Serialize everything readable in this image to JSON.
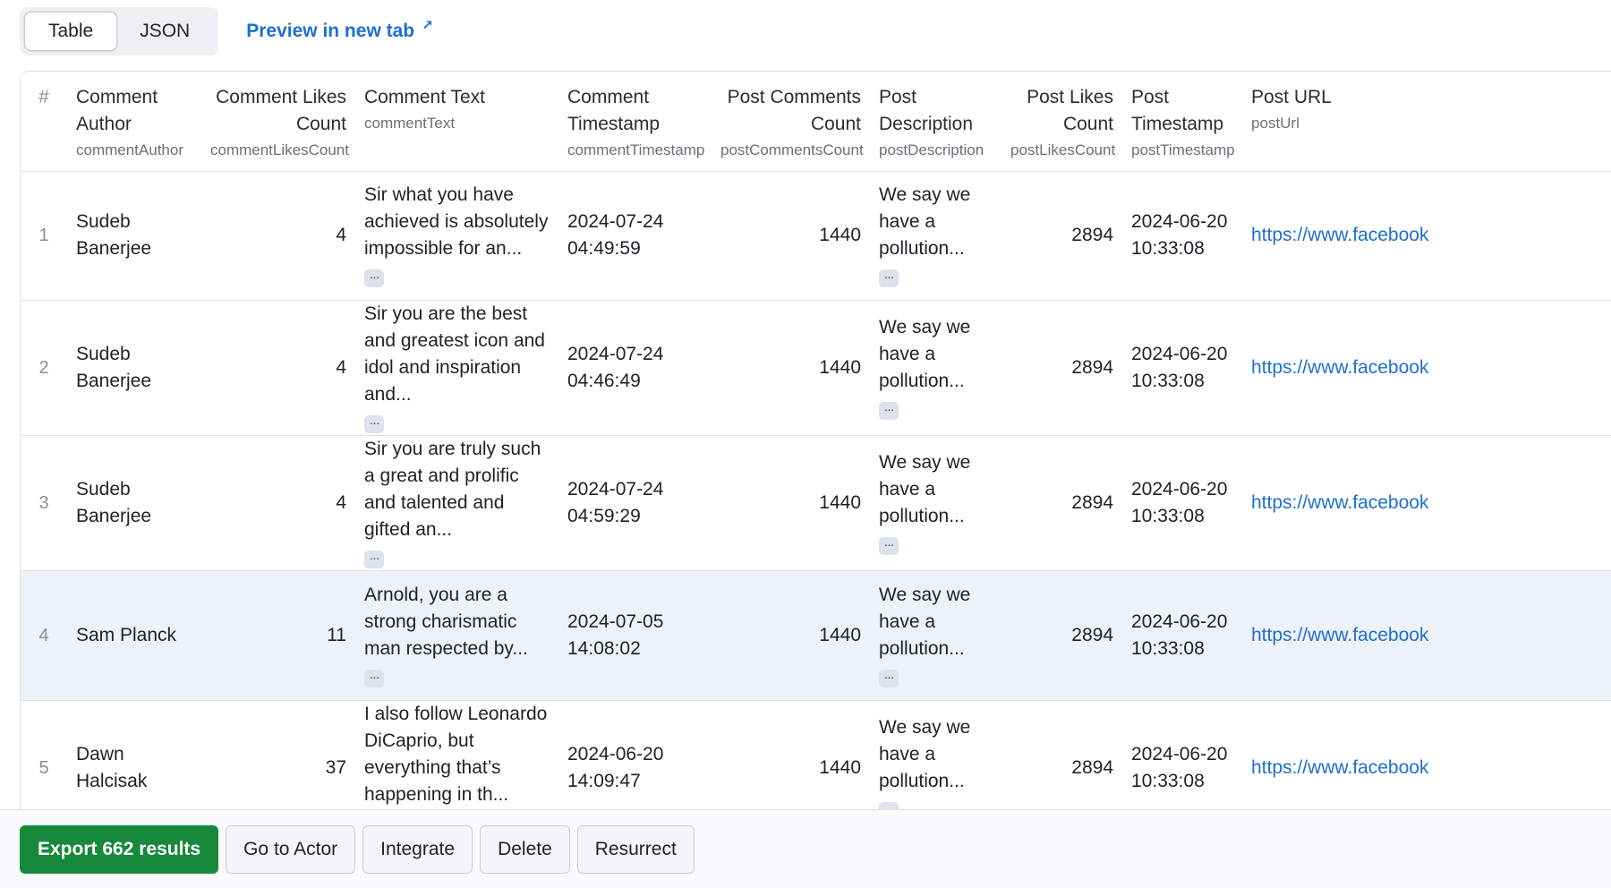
{
  "view_toggle": {
    "table": "Table",
    "json": "JSON"
  },
  "preview_link": {
    "label": "Preview in new tab",
    "icon": "↗"
  },
  "columns": [
    {
      "label": "#",
      "key": ""
    },
    {
      "label": "Comment Author",
      "key": "commentAuthor"
    },
    {
      "label": "Comment Likes Count",
      "key": "commentLikesCount"
    },
    {
      "label": "Comment Text",
      "key": "commentText"
    },
    {
      "label": "Comment Timestamp",
      "key": "commentTimestamp"
    },
    {
      "label": "Post Comments Count",
      "key": "postCommentsCount"
    },
    {
      "label": "Post Description",
      "key": "postDescription"
    },
    {
      "label": "Post Likes Count",
      "key": "postLikesCount"
    },
    {
      "label": "Post Timestamp",
      "key": "postTimestamp"
    },
    {
      "label": "Post URL",
      "key": "postUrl"
    }
  ],
  "rows": [
    {
      "index": "1",
      "author": "Sudeb Banerjee",
      "likes": "4",
      "text": "Sir what you have achieved is absolutely impossible for an...",
      "comment_ts": "2024-07-24 04:49:59",
      "post_comments": "1440",
      "post_desc": "We say we have a pollution...",
      "post_likes": "2894",
      "post_ts": "2024-06-20 10:33:08",
      "url": "https://www.facebook"
    },
    {
      "index": "2",
      "author": "Sudeb Banerjee",
      "likes": "4",
      "text": "Sir you are the best and greatest icon and idol and inspiration and...",
      "comment_ts": "2024-07-24 04:46:49",
      "post_comments": "1440",
      "post_desc": "We say we have a pollution...",
      "post_likes": "2894",
      "post_ts": "2024-06-20 10:33:08",
      "url": "https://www.facebook"
    },
    {
      "index": "3",
      "author": "Sudeb Banerjee",
      "likes": "4",
      "text": "Sir you are truly such a great and prolific and talented and gifted an...",
      "comment_ts": "2024-07-24 04:59:29",
      "post_comments": "1440",
      "post_desc": "We say we have a pollution...",
      "post_likes": "2894",
      "post_ts": "2024-06-20 10:33:08",
      "url": "https://www.facebook"
    },
    {
      "index": "4",
      "author": "Sam Planck",
      "likes": "11",
      "text": "Arnold, you are a strong charismatic man respected by...",
      "comment_ts": "2024-07-05 14:08:02",
      "post_comments": "1440",
      "post_desc": "We say we have a pollution...",
      "post_likes": "2894",
      "post_ts": "2024-06-20 10:33:08",
      "url": "https://www.facebook"
    },
    {
      "index": "5",
      "author": "Dawn Halcisak",
      "likes": "37",
      "text": "I also follow Leonardo DiCaprio, but everything that’s happening in th...",
      "comment_ts": "2024-06-20 14:09:47",
      "post_comments": "1440",
      "post_desc": "We say we have a pollution...",
      "post_likes": "2894",
      "post_ts": "2024-06-20 10:33:08",
      "url": "https://www.facebook"
    }
  ],
  "ellipsis": "···",
  "actions": {
    "export": "Export 662 results",
    "go_to_actor": "Go to Actor",
    "integrate": "Integrate",
    "delete": "Delete",
    "resurrect": "Resurrect"
  }
}
